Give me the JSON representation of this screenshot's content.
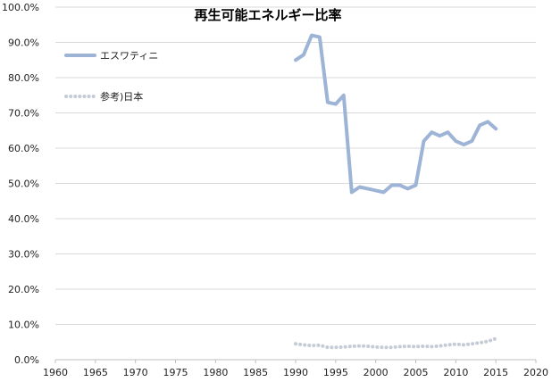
{
  "chart_data": {
    "type": "line",
    "title": "再生可能エネルギー比率",
    "xlabel": "",
    "ylabel": "",
    "xlim": [
      1960,
      2020
    ],
    "xticks": [
      1960,
      1965,
      1970,
      1975,
      1980,
      1985,
      1990,
      1995,
      2000,
      2005,
      2010,
      2015,
      2020
    ],
    "ylim": [
      0,
      100
    ],
    "yticks": [
      0,
      10,
      20,
      30,
      40,
      50,
      60,
      70,
      80,
      90,
      100
    ],
    "ytick_labels": [
      "0.0%",
      "10.0%",
      "20.0%",
      "30.0%",
      "40.0%",
      "50.0%",
      "60.0%",
      "70.0%",
      "80.0%",
      "90.0%",
      "100.0%"
    ],
    "grid": "horizontal",
    "legend_position": "top-left",
    "series": [
      {
        "name": "エスワティニ",
        "color": "#9db4d6",
        "style": "solid",
        "x": [
          1990,
          1991,
          1992,
          1993,
          1994,
          1995,
          1996,
          1997,
          1998,
          1999,
          2000,
          2001,
          2002,
          2003,
          2004,
          2005,
          2006,
          2007,
          2008,
          2009,
          2010,
          2011,
          2012,
          2013,
          2014,
          2015
        ],
        "y": [
          85,
          86.5,
          92,
          91.5,
          73,
          72.5,
          75,
          47.5,
          49,
          48.5,
          48,
          47.5,
          49.5,
          49.5,
          48.5,
          49.5,
          62,
          64.5,
          63.5,
          64.5,
          62,
          61,
          62,
          66.5,
          67.5,
          65.5
        ]
      },
      {
        "name": "参考)日本",
        "color": "#c5ccd6",
        "style": "dotted",
        "x": [
          1990,
          1991,
          1992,
          1993,
          1994,
          1995,
          1996,
          1997,
          1998,
          1999,
          2000,
          2001,
          2002,
          2003,
          2004,
          2005,
          2006,
          2007,
          2008,
          2009,
          2010,
          2011,
          2012,
          2013,
          2014,
          2015
        ],
        "y": [
          4.5,
          4.2,
          4.0,
          4.1,
          3.5,
          3.5,
          3.6,
          3.8,
          3.9,
          3.8,
          3.6,
          3.5,
          3.5,
          3.7,
          3.8,
          3.7,
          3.8,
          3.7,
          3.9,
          4.2,
          4.4,
          4.2,
          4.5,
          4.8,
          5.2,
          6.0
        ]
      }
    ]
  }
}
